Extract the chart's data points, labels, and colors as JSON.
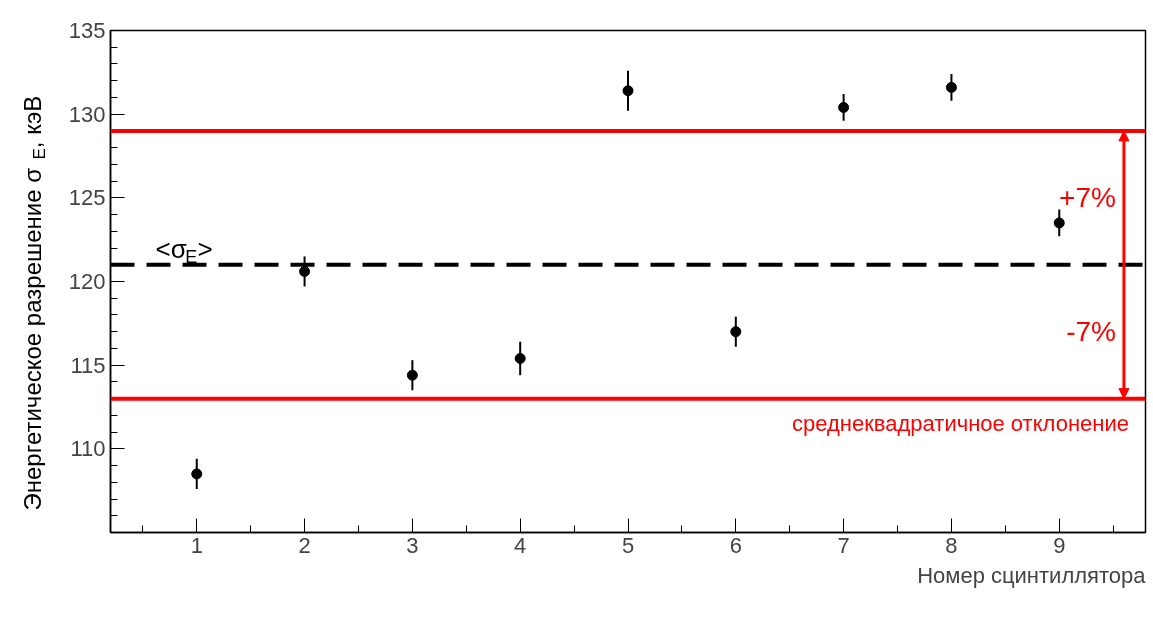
{
  "chart_data": {
    "type": "scatter",
    "xlabel": "Номер сцинтиллятора",
    "ylabel": "Энергетическое разрешение σ$_{E}$, кэВ",
    "x": [
      1,
      2,
      3,
      4,
      5,
      6,
      7,
      8,
      9
    ],
    "series": [
      {
        "color": "#000000",
        "values": [
          108.5,
          120.6,
          114.4,
          115.4,
          131.4,
          117.0,
          130.4,
          131.6,
          123.5
        ],
        "errors": [
          0.9,
          0.9,
          0.9,
          1.0,
          1.2,
          0.9,
          0.8,
          0.8,
          0.8
        ]
      }
    ],
    "marker": "circle",
    "xlim": [
      0.2,
      9.8
    ],
    "xticks": [
      1,
      2,
      3,
      4,
      5,
      6,
      7,
      8,
      9
    ],
    "ylim": [
      105,
      135
    ],
    "yticks": [
      110,
      115,
      120,
      125,
      130,
      135
    ],
    "grid": false,
    "ref_lines": [
      {
        "axis": "y",
        "value": 121.0,
        "label": "<σ$_{E}$>",
        "color": "#000000",
        "line_style": "dashed"
      },
      {
        "axis": "y",
        "value": 129.0,
        "color": "#ff0000",
        "line_style": "solid"
      },
      {
        "axis": "y",
        "value": 113.0,
        "color": "#ff0000",
        "line_style": "solid"
      }
    ],
    "annotations": [
      "+7%",
      "-7%",
      {
        "text": "среднеквадратичное отклонение",
        "x": 9.6,
        "y": 113.0
      }
    ]
  }
}
